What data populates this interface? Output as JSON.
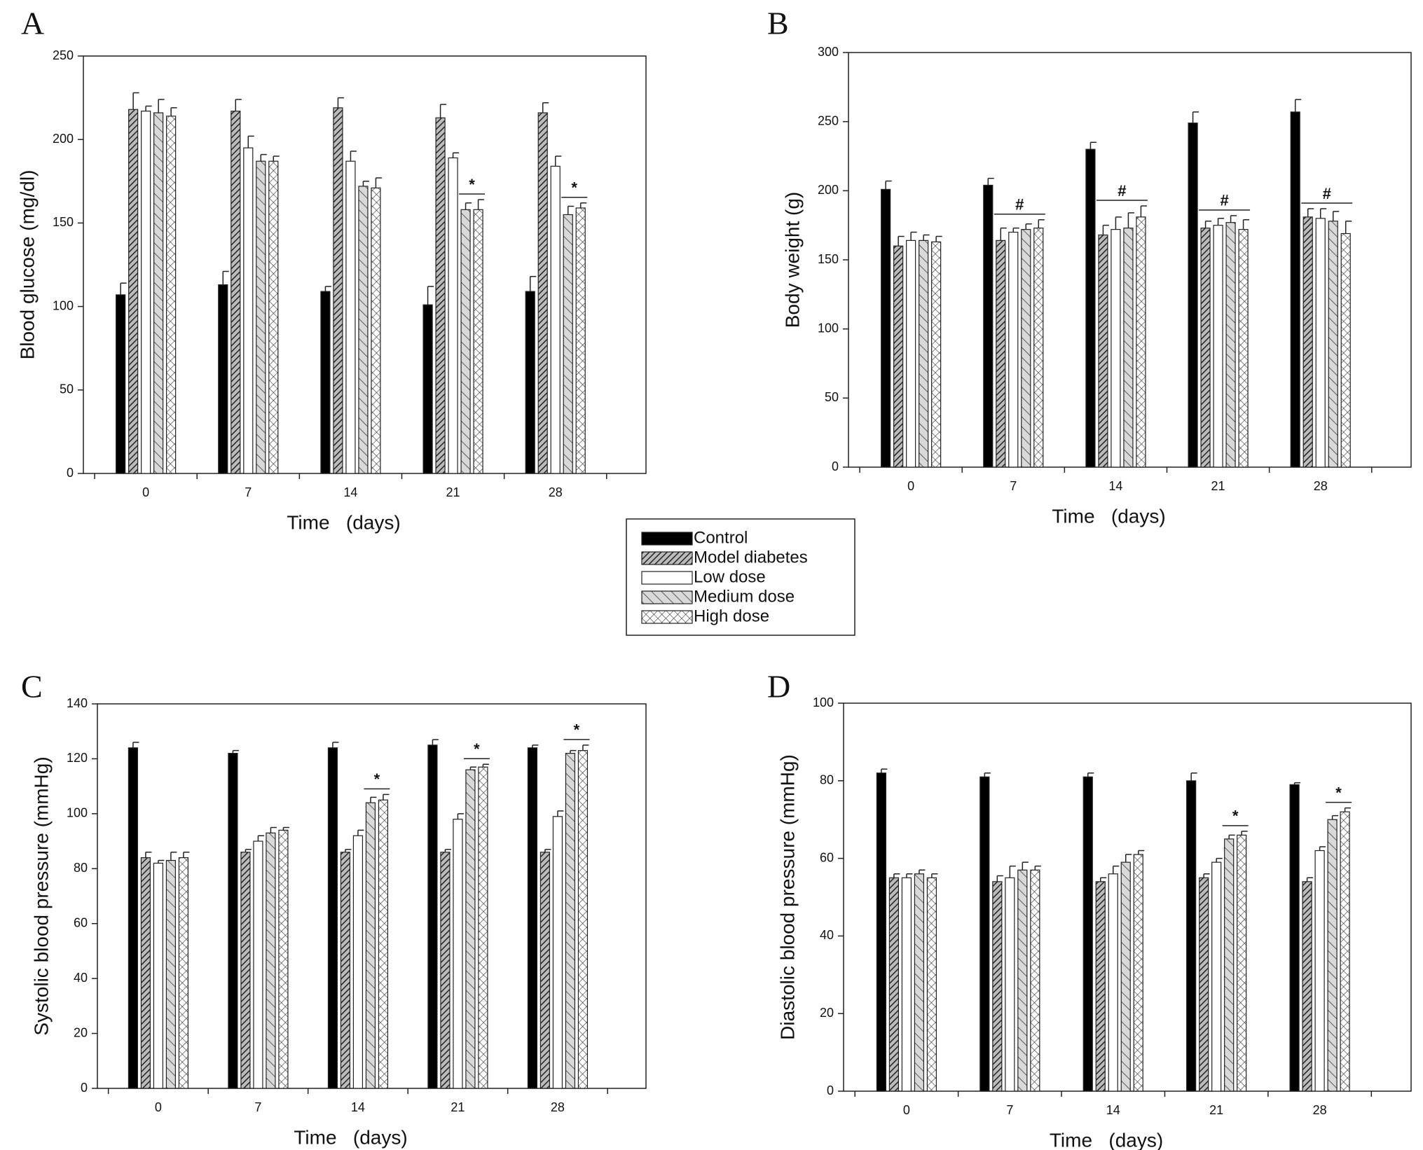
{
  "chart_data": [
    {
      "label": "A",
      "type": "bar",
      "y_label": "Blood glucose (mg/dl)",
      "x_label": "Time   (days)",
      "categories": [
        "0",
        "7",
        "14",
        "21",
        "28"
      ],
      "series": [
        {
          "name": "Control",
          "color": "#000000",
          "pattern": "solid",
          "values": [
            107,
            113,
            109,
            101,
            109
          ],
          "errors": [
            7,
            8,
            3,
            11,
            9
          ]
        },
        {
          "name": "Model diabetes",
          "color": "#555555",
          "pattern": "hatch",
          "values": [
            218,
            217,
            219,
            213,
            216
          ],
          "errors": [
            10,
            7,
            6,
            8,
            6
          ]
        },
        {
          "name": "Low dose",
          "color": "#ffffff",
          "pattern": "none",
          "values": [
            217,
            195,
            187,
            189,
            184
          ],
          "errors": [
            3,
            7,
            6,
            3,
            6
          ]
        },
        {
          "name": "Medium dose",
          "color": "#d9d9d9",
          "pattern": "backslash",
          "values": [
            216,
            187,
            172,
            158,
            155
          ],
          "errors": [
            8,
            4,
            3,
            4,
            5
          ]
        },
        {
          "name": "High dose",
          "color": "#ffffff",
          "pattern": "cross",
          "values": [
            214,
            187,
            171,
            158,
            159
          ],
          "errors": [
            5,
            3,
            6,
            6,
            3
          ]
        }
      ],
      "ylim": [
        0,
        250
      ],
      "yticks": [
        0,
        50,
        100,
        150,
        200,
        250
      ],
      "annotations": [
        {
          "text": "*",
          "category": "21",
          "series": [
            "Medium dose",
            "High dose"
          ]
        },
        {
          "text": "*",
          "category": "28",
          "series": [
            "Medium dose",
            "High dose"
          ]
        }
      ]
    },
    {
      "label": "B",
      "type": "bar",
      "y_label": "Body weight (g)",
      "x_label": "Time   (days)",
      "categories": [
        "0",
        "7",
        "14",
        "21",
        "28"
      ],
      "series": [
        {
          "values": [
            201,
            204,
            230,
            249,
            257
          ],
          "errors": [
            6,
            5,
            5,
            8,
            9
          ]
        },
        {
          "values": [
            160,
            164,
            168,
            173,
            181
          ],
          "errors": [
            7,
            9,
            7,
            5,
            6
          ]
        },
        {
          "values": [
            164,
            170,
            172,
            175,
            180
          ],
          "errors": [
            6,
            3,
            9,
            5,
            7
          ]
        },
        {
          "values": [
            164,
            172,
            173,
            177,
            178
          ],
          "errors": [
            4,
            4,
            11,
            5,
            7
          ]
        },
        {
          "values": [
            163,
            173,
            181,
            172,
            169
          ],
          "errors": [
            4,
            6,
            8,
            7,
            9
          ]
        }
      ],
      "ylim": [
        0,
        300
      ],
      "yticks": [
        0,
        50,
        100,
        150,
        200,
        250,
        300
      ],
      "annotations": [
        {
          "text": "#",
          "category": "7",
          "series": [
            "Model diabetes",
            "High dose"
          ]
        },
        {
          "text": "#",
          "category": "14",
          "series": [
            "Model diabetes",
            "High dose"
          ]
        },
        {
          "text": "#",
          "category": "21",
          "series": [
            "Model diabetes",
            "High dose"
          ]
        },
        {
          "text": "#",
          "category": "28",
          "series": [
            "Model diabetes",
            "High dose"
          ]
        }
      ]
    },
    {
      "label": "C",
      "type": "bar",
      "y_label": "Systolic blood pressure (mmHg)",
      "x_label": "Time   (days)",
      "categories": [
        "0",
        "7",
        "14",
        "21",
        "28"
      ],
      "series": [
        {
          "values": [
            124,
            122,
            124,
            125,
            124
          ],
          "errors": [
            2,
            1,
            2,
            2,
            1
          ]
        },
        {
          "values": [
            84,
            86,
            86,
            86,
            86
          ],
          "errors": [
            2,
            1,
            1,
            1,
            1
          ]
        },
        {
          "values": [
            82,
            90,
            92,
            98,
            99
          ],
          "errors": [
            1,
            2,
            2,
            2,
            2
          ]
        },
        {
          "values": [
            83,
            93,
            104,
            116,
            122
          ],
          "errors": [
            3,
            2,
            2,
            1,
            1
          ]
        },
        {
          "values": [
            84,
            94,
            105,
            117,
            123
          ],
          "errors": [
            2,
            1,
            2,
            1,
            2
          ]
        }
      ],
      "ylim": [
        0,
        140
      ],
      "yticks": [
        0,
        20,
        40,
        60,
        80,
        100,
        120,
        140
      ],
      "annotations": [
        {
          "text": "*",
          "category": "14",
          "series": [
            "Medium dose",
            "High dose"
          ]
        },
        {
          "text": "*",
          "category": "21",
          "series": [
            "Medium dose",
            "High dose"
          ]
        },
        {
          "text": "*",
          "category": "28",
          "series": [
            "Medium dose",
            "High dose"
          ]
        }
      ]
    },
    {
      "label": "D",
      "type": "bar",
      "y_label": "Diastolic blood pressure (mmHg)",
      "x_label": "Time   (days)",
      "categories": [
        "0",
        "7",
        "14",
        "21",
        "28"
      ],
      "series": [
        {
          "values": [
            82,
            81,
            81,
            80,
            79
          ],
          "errors": [
            1,
            1,
            1,
            2,
            0.5
          ]
        },
        {
          "values": [
            55,
            54,
            54,
            55,
            54
          ],
          "errors": [
            1,
            1.5,
            1,
            1,
            1
          ]
        },
        {
          "values": [
            55,
            55,
            56,
            59,
            62
          ],
          "errors": [
            1,
            3,
            2,
            1,
            1
          ]
        },
        {
          "values": [
            56,
            57,
            59,
            65,
            70
          ],
          "errors": [
            1,
            2,
            2,
            1,
            1
          ]
        },
        {
          "values": [
            55,
            57,
            61,
            66,
            72
          ],
          "errors": [
            1,
            1,
            1,
            1,
            1
          ]
        }
      ],
      "ylim": [
        0,
        100
      ],
      "yticks": [
        0,
        20,
        40,
        60,
        80,
        100
      ],
      "annotations": [
        {
          "text": "*",
          "category": "21",
          "series": [
            "Medium dose",
            "High dose"
          ]
        },
        {
          "text": "*",
          "category": "28",
          "series": [
            "Medium dose",
            "High dose"
          ]
        }
      ]
    }
  ]
}
